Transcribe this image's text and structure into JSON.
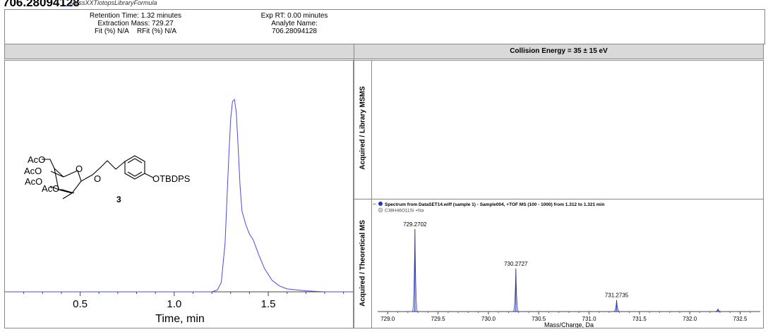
{
  "header": {
    "title": "706.28094128",
    "link_text": "MassXXTiotopsLibraryFormula"
  },
  "info": {
    "retention_time": "Retention Time: 1.32 minutes",
    "extraction_mass": "Extraction Mass: 729.27",
    "fit": "Fit (%) N/A",
    "rfit": "RFit (%) N/A",
    "exp_rt": "Exp RT: 0.00 minutes",
    "analyte_name_label": "Analyte Name:",
    "analyte_name_value": "706.28094128"
  },
  "collision_energy": "Collision Energy = 35 ± 15 eV",
  "structure": {
    "substituent_labels": [
      "AcO",
      "AcO",
      "AcO",
      "AcO"
    ],
    "ring_oxygens": [
      "O",
      "O"
    ],
    "tail_label": "OTBDPS",
    "compound_number": "3"
  },
  "right_panel": {
    "top_axis_label": "Acquired / Library MSMS",
    "bottom_axis_label": "Acquired / Theoretical MS"
  },
  "chart_data": [
    {
      "type": "line",
      "xlabel": "Time, min",
      "ylabel": "",
      "xlim": [
        0.1,
        1.95
      ],
      "xticks": [
        "0.5",
        "1.0",
        "1.5"
      ],
      "series": [
        {
          "x": [
            0.1,
            1.2,
            1.23,
            1.25,
            1.27,
            1.29,
            1.3,
            1.31,
            1.32,
            1.33,
            1.34,
            1.35,
            1.36,
            1.38,
            1.4,
            1.42,
            1.45,
            1.48,
            1.52,
            1.56,
            1.6,
            1.7,
            1.8,
            1.95
          ],
          "y": [
            0.0,
            0.0,
            0.01,
            0.05,
            0.25,
            0.7,
            0.9,
            0.99,
            1.0,
            0.93,
            0.75,
            0.55,
            0.42,
            0.35,
            0.3,
            0.27,
            0.19,
            0.12,
            0.06,
            0.03,
            0.015,
            0.005,
            0.0,
            0.0
          ],
          "color": "#4a4adf"
        }
      ]
    },
    {
      "type": "line",
      "xlabel": "Mass/Charge, Da",
      "ylabel": "",
      "xlim": [
        728.9,
        732.7
      ],
      "xticks": [
        "729.0",
        "729.5",
        "730.0",
        "730.5",
        "731.0",
        "731.5",
        "732.0",
        "732.5"
      ],
      "legend": [
        {
          "label": "Spectrum from DataSET14.wiff (sample 1) - Sample004, +TOF MS (100 - 1000) from 1.312 to 1.321 min",
          "color": "#2030c0"
        },
        {
          "label": "C38H46O11Si +Na",
          "color": "#c8c8c8"
        }
      ],
      "peaks": [
        {
          "mz": 729.2702,
          "intensity": 1.0,
          "label": "729.2702"
        },
        {
          "mz": 730.2727,
          "intensity": 0.52,
          "label": "730.2727"
        },
        {
          "mz": 731.2735,
          "intensity": 0.14,
          "label": "731.2735"
        },
        {
          "mz": 732.28,
          "intensity": 0.03,
          "label": ""
        }
      ]
    }
  ]
}
